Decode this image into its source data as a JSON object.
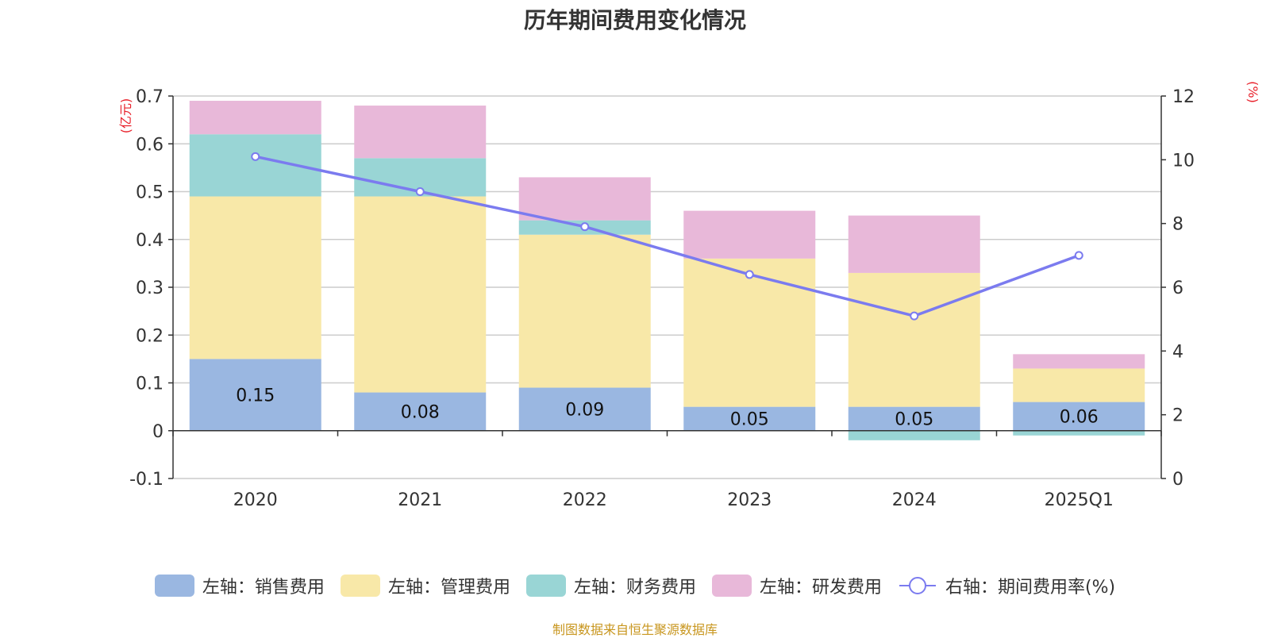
{
  "colors": {
    "sales": "#9ab7e1",
    "admin": "#f8e8a8",
    "finance": "#99d5d5",
    "rd": "#e8b8d9",
    "rate": "#7b7bef",
    "right_unit": "#e8202a",
    "left_unit": "#e8202a",
    "source": "#c8961e"
  },
  "chart_data": {
    "type": "bar",
    "title": "历年期间费用变化情况",
    "categories": [
      "2020",
      "2021",
      "2022",
      "2023",
      "2024",
      "2025Q1"
    ],
    "series": [
      {
        "name": "左轴：销售费用",
        "axis": "left",
        "stack": true,
        "color_key": "sales",
        "values": [
          0.15,
          0.08,
          0.09,
          0.05,
          0.05,
          0.06
        ],
        "labels": [
          "0.15",
          "0.08",
          "0.09",
          "0.05",
          "0.05",
          "0.06"
        ]
      },
      {
        "name": "左轴：管理费用",
        "axis": "left",
        "stack": true,
        "color_key": "admin",
        "values": [
          0.34,
          0.41,
          0.32,
          0.31,
          0.28,
          0.07
        ]
      },
      {
        "name": "左轴：财务费用",
        "axis": "left",
        "stack": true,
        "color_key": "finance",
        "values": [
          0.13,
          0.08,
          0.03,
          0.0,
          -0.02,
          -0.01
        ]
      },
      {
        "name": "左轴：研发费用",
        "axis": "left",
        "stack": true,
        "color_key": "rd",
        "values": [
          0.07,
          0.11,
          0.09,
          0.1,
          0.12,
          0.03
        ]
      },
      {
        "name": "右轴：期间费用率(%)",
        "axis": "right",
        "type": "line",
        "color_key": "rate",
        "values": [
          10.1,
          9.0,
          7.9,
          6.4,
          5.1,
          7.0
        ]
      }
    ],
    "left_axis": {
      "unit": "(亿元)",
      "min": -0.1,
      "max": 0.7,
      "ticks": [
        -0.1,
        0,
        0.1,
        0.2,
        0.3,
        0.4,
        0.5,
        0.6,
        0.7
      ],
      "tick_labels": [
        "-0.1",
        "0",
        "0.1",
        "0.2",
        "0.3",
        "0.4",
        "0.5",
        "0.6",
        "0.7"
      ]
    },
    "right_axis": {
      "unit": "(%)",
      "min": 0,
      "max": 12,
      "ticks": [
        0,
        2,
        4,
        6,
        8,
        10,
        12
      ],
      "tick_labels": [
        "0",
        "2",
        "4",
        "6",
        "8",
        "10",
        "12"
      ]
    },
    "grid": true,
    "legend_position": "bottom"
  },
  "source_note": "制图数据来自恒生聚源数据库"
}
